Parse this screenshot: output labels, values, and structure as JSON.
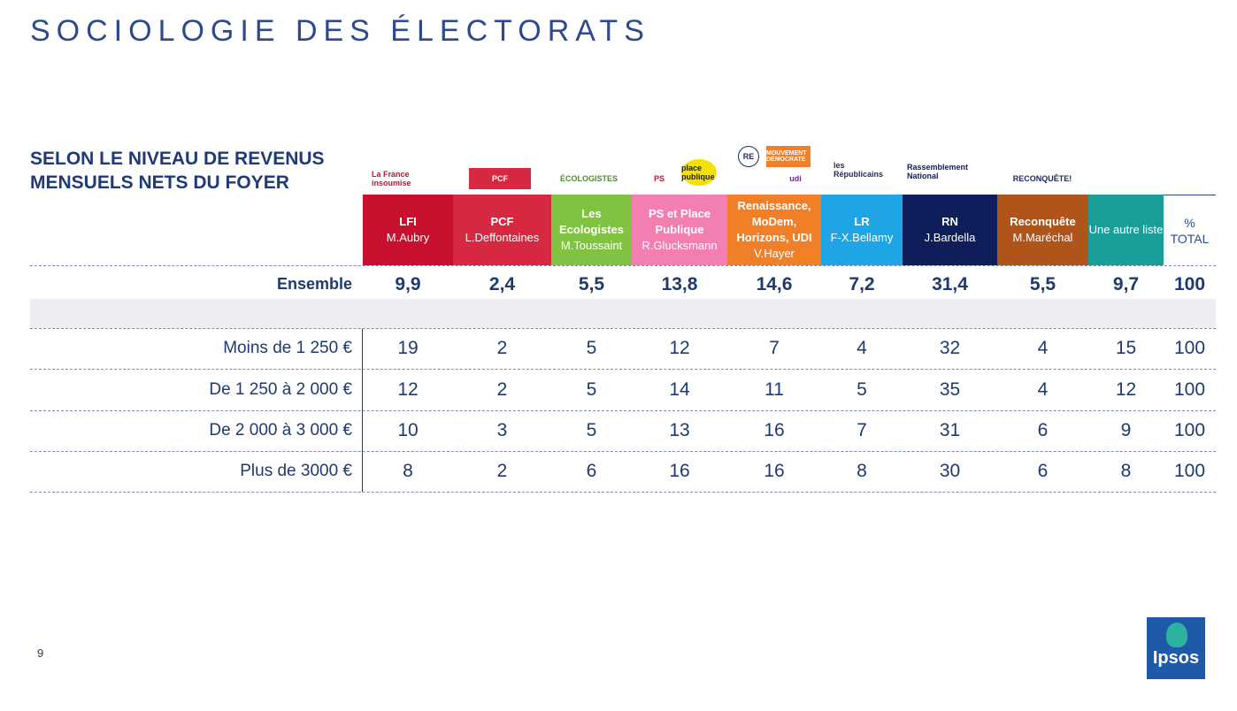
{
  "title": "SOCIOLOGIE DES ÉLECTORATS",
  "subtitle_line1": "SELON LE NIVEAU DE REVENUS",
  "subtitle_line2": "MENSUELS NETS DU FOYER",
  "logos": [
    "La France insoumise",
    "PCF",
    "ÉCOLOGISTES",
    "PS",
    "place publique",
    "RE",
    "MOUVEMENT DÉMOCRATE",
    "udi",
    "les Républicains",
    "Rassemblement National",
    "RECONQUÊTE!"
  ],
  "columns": [
    {
      "name": "LFI",
      "candidate": "M.Aubry",
      "color": "#c8102e"
    },
    {
      "name": "PCF",
      "candidate": "L.Deffontaines",
      "color": "#d62840"
    },
    {
      "name": "Les Ecologistes",
      "candidate": "M.Toussaint",
      "color": "#80c342"
    },
    {
      "name": "PS et Place Publique",
      "candidate": "R.Glucksmann",
      "color": "#f37fb2"
    },
    {
      "name": "Renaissance, MoDem, Horizons, UDI",
      "candidate": "V.Hayer",
      "color": "#f07f28"
    },
    {
      "name": "LR",
      "candidate": "F-X.Bellamy",
      "color": "#1fa4e6"
    },
    {
      "name": "RN",
      "candidate": "J.Bardella",
      "color": "#0f1e5a"
    },
    {
      "name": "Reconquête",
      "candidate": "M.Maréchal",
      "color": "#b0551a"
    },
    {
      "name": "Une autre liste",
      "candidate": "",
      "color": "#1a9e9a"
    }
  ],
  "total_header_1": "%",
  "total_header_2": "TOTAL",
  "ensemble": {
    "label": "Ensemble",
    "values": [
      "9,9",
      "2,4",
      "5,5",
      "13,8",
      "14,6",
      "7,2",
      "31,4",
      "5,5",
      "9,7",
      "100"
    ]
  },
  "rows": [
    {
      "label": "Moins de 1 250 €",
      "values": [
        "19",
        "2",
        "5",
        "12",
        "7",
        "4",
        "32",
        "4",
        "15",
        "100"
      ]
    },
    {
      "label": "De 1 250 à 2 000 €",
      "values": [
        "12",
        "2",
        "5",
        "14",
        "11",
        "5",
        "35",
        "4",
        "12",
        "100"
      ]
    },
    {
      "label": "De 2 000 à 3 000 €",
      "values": [
        "10",
        "3",
        "5",
        "13",
        "16",
        "7",
        "31",
        "6",
        "9",
        "100"
      ]
    },
    {
      "label": "Plus de 3000 €",
      "values": [
        "8",
        "2",
        "6",
        "16",
        "16",
        "8",
        "30",
        "6",
        "8",
        "100"
      ]
    }
  ],
  "page_number": "9",
  "brand": "Ipsos"
}
